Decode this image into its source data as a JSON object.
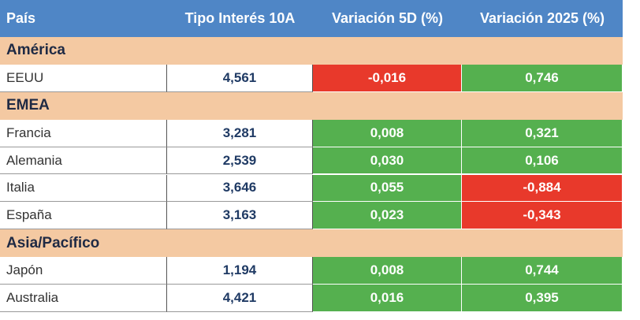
{
  "table": {
    "header": [
      "País",
      "Tipo Interés 10A",
      "Variación 5D (%)",
      "Variación 2025 (%)"
    ],
    "groups": [
      {
        "name": "América",
        "rows": [
          [
            "EEUU",
            "4,561",
            {
              "text": "-0,016",
              "fill": "#e8392b"
            },
            {
              "text": "0,746",
              "fill": "#55b04f"
            }
          ]
        ]
      },
      {
        "name": "EMEA",
        "rows": [
          [
            "Francia",
            "3,281",
            {
              "text": "0,008",
              "fill": "#55b04f"
            },
            {
              "text": "0,321",
              "fill": "#55b04f"
            }
          ],
          [
            "Alemania",
            "2,539",
            {
              "text": "0,030",
              "fill": "#55b04f"
            },
            {
              "text": "0,106",
              "fill": "#55b04f"
            }
          ],
          [
            "Italia",
            "3,646",
            {
              "text": "0,055",
              "fill": "#55b04f"
            },
            {
              "text": "-0,884",
              "fill": "#e8392b"
            }
          ],
          [
            "España",
            "3,163",
            {
              "text": "0,023",
              "fill": "#55b04f"
            },
            {
              "text": "-0,343",
              "fill": "#e8392b"
            }
          ]
        ]
      },
      {
        "name": "Asia/Pacífico",
        "rows": [
          [
            "Japón",
            "1,194",
            {
              "text": "0,008",
              "fill": "#55b04f"
            },
            {
              "text": "0,744",
              "fill": "#55b04f"
            }
          ],
          [
            "Australia",
            "4,421",
            {
              "text": "0,016",
              "fill": "#55b04f"
            },
            {
              "text": "0,395",
              "fill": "#55b04f"
            }
          ]
        ]
      }
    ]
  }
}
